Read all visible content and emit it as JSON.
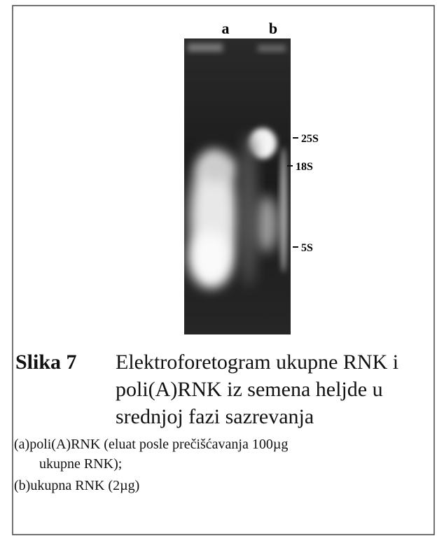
{
  "figure": {
    "lanes": [
      "a",
      "b"
    ],
    "markers": [
      "25S",
      "18S",
      "5S"
    ],
    "caption": {
      "label": "Slika 7",
      "lines": [
        "Elektroforetogram ukupne RNK i",
        "poli(A)RNK iz semena heljde u",
        "srednjoj fazi sazrevanja"
      ]
    },
    "notes": [
      "(a)poli(A)RNK (eluat posle prečišćavanja 100µg",
      "ukupne RNK);",
      "(b)ukupna RNK (2µg)"
    ]
  }
}
